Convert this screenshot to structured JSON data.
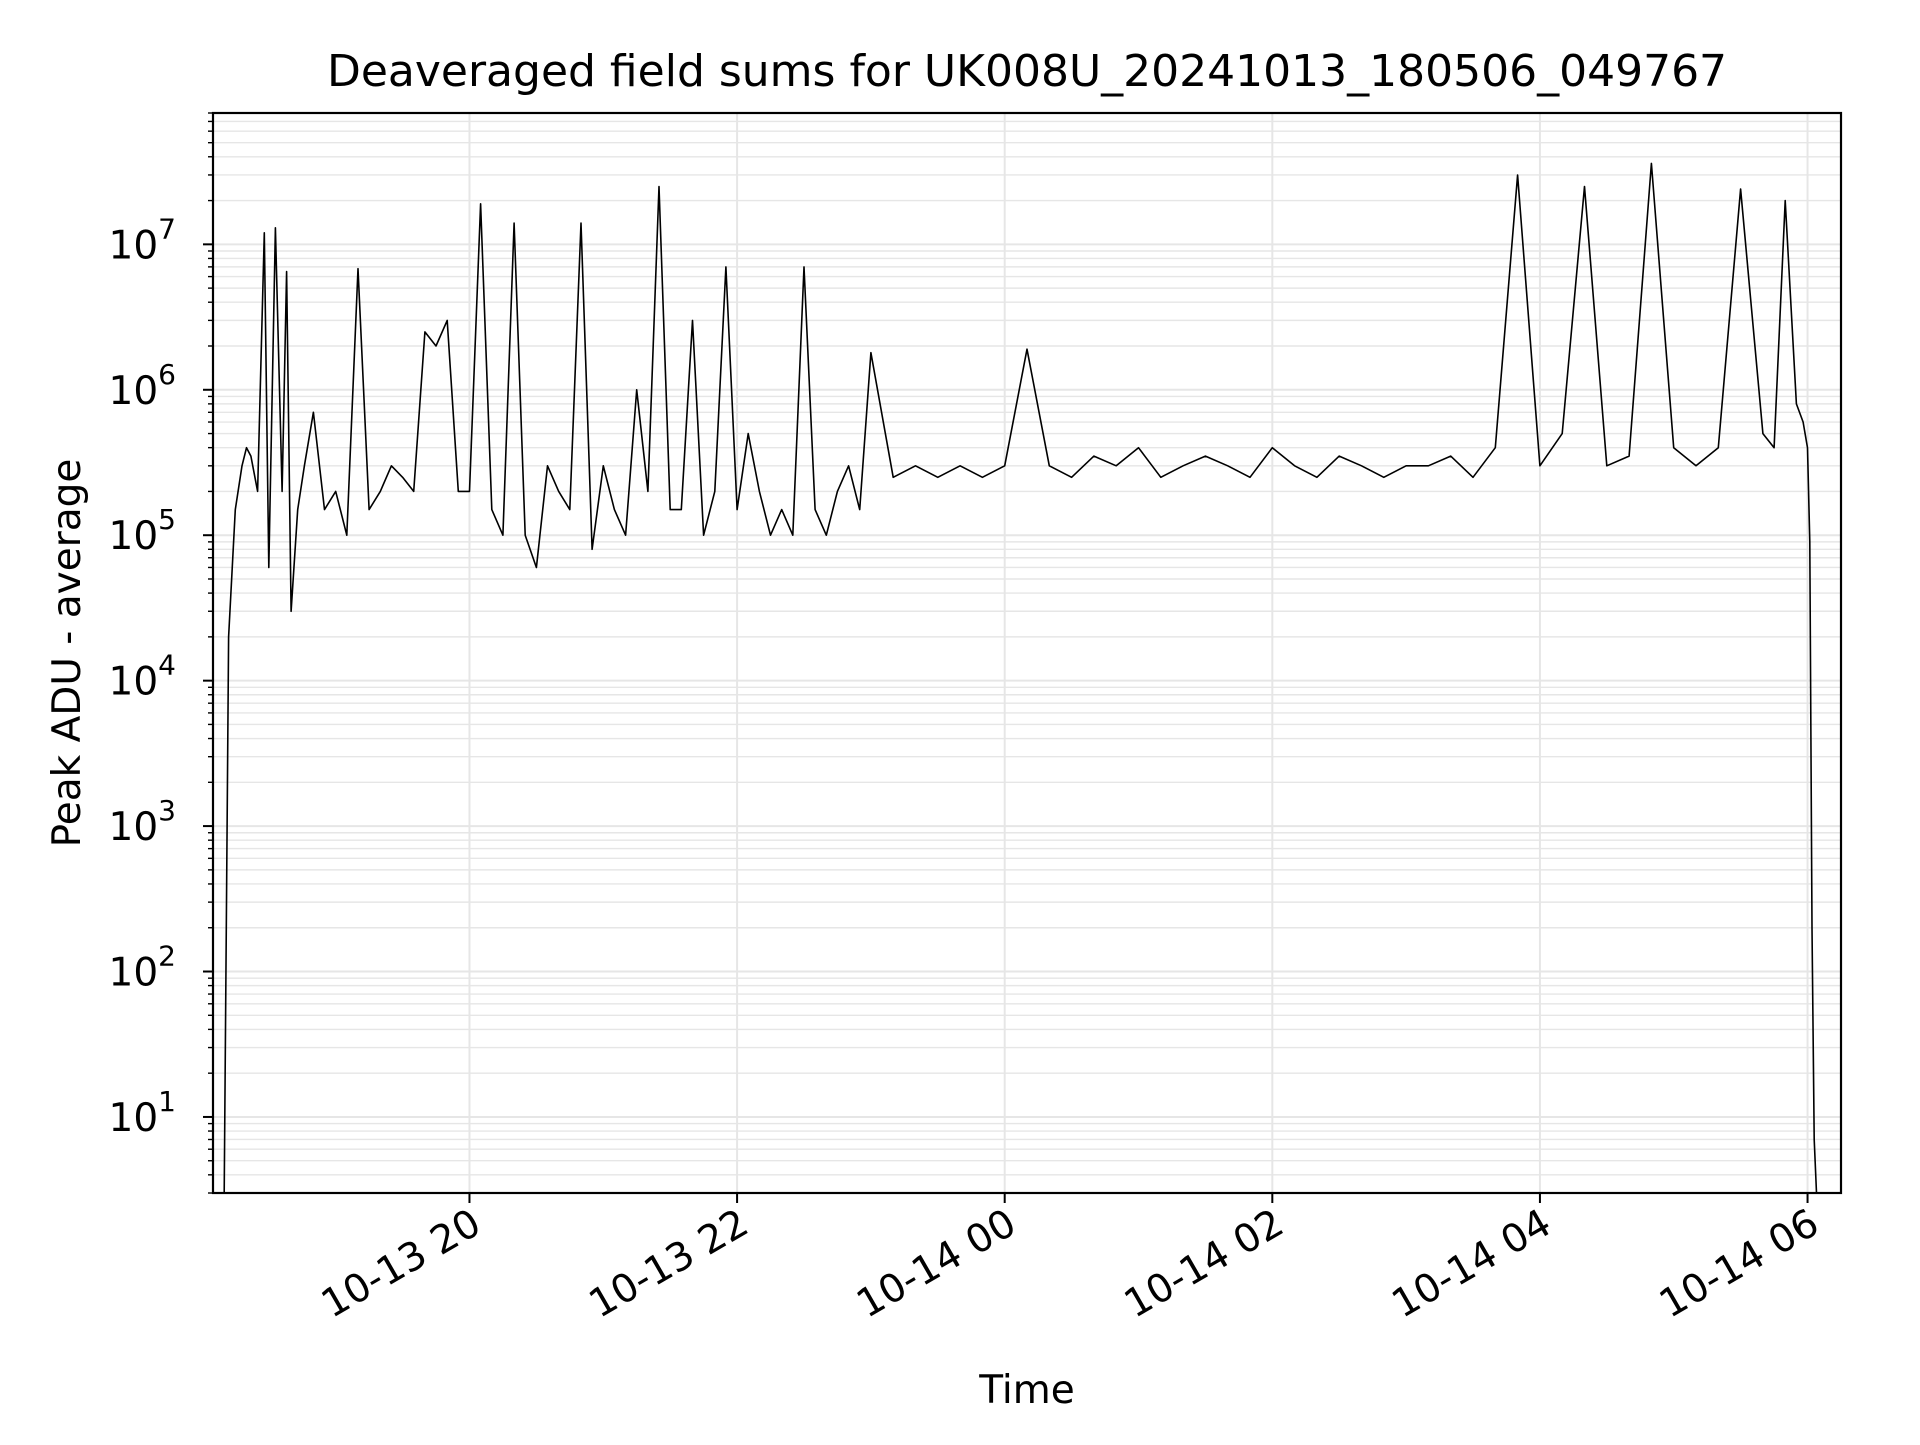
{
  "chart_data": {
    "type": "line",
    "title": "Deaveraged field sums for UK008U_20241013_180506_049767",
    "xlabel": "Time",
    "ylabel": "Peak ADU - average",
    "yscale": "log",
    "ylim": [
      3,
      80000000
    ],
    "xlim": [
      "2024-10-13 18:05",
      "2024-10-14 06:15"
    ],
    "grid": true,
    "legend": "none",
    "line_color": "#000000",
    "grid_color": "#e6e6e6",
    "x_ticks": [
      {
        "value": "2024-10-13 20:00",
        "label": "10-13 20"
      },
      {
        "value": "2024-10-13 22:00",
        "label": "10-13 22"
      },
      {
        "value": "2024-10-14 00:00",
        "label": "10-14 00"
      },
      {
        "value": "2024-10-14 02:00",
        "label": "10-14 02"
      },
      {
        "value": "2024-10-14 04:00",
        "label": "10-14 04"
      },
      {
        "value": "2024-10-14 06:00",
        "label": "10-14 06"
      }
    ],
    "y_ticks": [
      {
        "value": 10,
        "base": "10",
        "exp": "1"
      },
      {
        "value": 100,
        "base": "10",
        "exp": "2"
      },
      {
        "value": 1000,
        "base": "10",
        "exp": "3"
      },
      {
        "value": 10000,
        "base": "10",
        "exp": "4"
      },
      {
        "value": 100000,
        "base": "10",
        "exp": "5"
      },
      {
        "value": 1000000,
        "base": "10",
        "exp": "6"
      },
      {
        "value": 10000000,
        "base": "10",
        "exp": "7"
      }
    ],
    "series": [
      {
        "x": [
          "2024-10-13 18:10",
          "2024-10-13 18:12",
          "2024-10-13 18:15",
          "2024-10-13 18:18",
          "2024-10-13 18:20",
          "2024-10-13 18:22",
          "2024-10-13 18:25",
          "2024-10-13 18:28",
          "2024-10-13 18:30",
          "2024-10-13 18:33",
          "2024-10-13 18:36",
          "2024-10-13 18:38",
          "2024-10-13 18:40",
          "2024-10-13 18:43",
          "2024-10-13 18:46",
          "2024-10-13 18:50",
          "2024-10-13 18:55",
          "2024-10-13 19:00",
          "2024-10-13 19:05",
          "2024-10-13 19:10",
          "2024-10-13 19:15",
          "2024-10-13 19:20",
          "2024-10-13 19:25",
          "2024-10-13 19:30",
          "2024-10-13 19:35",
          "2024-10-13 19:40",
          "2024-10-13 19:45",
          "2024-10-13 19:50",
          "2024-10-13 19:55",
          "2024-10-13 20:00",
          "2024-10-13 20:05",
          "2024-10-13 20:10",
          "2024-10-13 20:15",
          "2024-10-13 20:20",
          "2024-10-13 20:25",
          "2024-10-13 20:30",
          "2024-10-13 20:35",
          "2024-10-13 20:40",
          "2024-10-13 20:45",
          "2024-10-13 20:50",
          "2024-10-13 20:55",
          "2024-10-13 21:00",
          "2024-10-13 21:05",
          "2024-10-13 21:10",
          "2024-10-13 21:15",
          "2024-10-13 21:20",
          "2024-10-13 21:25",
          "2024-10-13 21:30",
          "2024-10-13 21:35",
          "2024-10-13 21:40",
          "2024-10-13 21:45",
          "2024-10-13 21:50",
          "2024-10-13 21:55",
          "2024-10-13 22:00",
          "2024-10-13 22:05",
          "2024-10-13 22:10",
          "2024-10-13 22:15",
          "2024-10-13 22:20",
          "2024-10-13 22:25",
          "2024-10-13 22:30",
          "2024-10-13 22:35",
          "2024-10-13 22:40",
          "2024-10-13 22:45",
          "2024-10-13 22:50",
          "2024-10-13 22:55",
          "2024-10-13 23:00",
          "2024-10-13 23:10",
          "2024-10-13 23:20",
          "2024-10-13 23:30",
          "2024-10-13 23:40",
          "2024-10-13 23:50",
          "2024-10-14 00:00",
          "2024-10-14 00:10",
          "2024-10-14 00:20",
          "2024-10-14 00:30",
          "2024-10-14 00:40",
          "2024-10-14 00:50",
          "2024-10-14 01:00",
          "2024-10-14 01:10",
          "2024-10-14 01:20",
          "2024-10-14 01:30",
          "2024-10-14 01:40",
          "2024-10-14 01:50",
          "2024-10-14 02:00",
          "2024-10-14 02:10",
          "2024-10-14 02:20",
          "2024-10-14 02:30",
          "2024-10-14 02:40",
          "2024-10-14 02:50",
          "2024-10-14 03:00",
          "2024-10-14 03:10",
          "2024-10-14 03:20",
          "2024-10-14 03:30",
          "2024-10-14 03:40",
          "2024-10-14 03:50",
          "2024-10-14 04:00",
          "2024-10-14 04:10",
          "2024-10-14 04:20",
          "2024-10-14 04:30",
          "2024-10-14 04:40",
          "2024-10-14 04:50",
          "2024-10-14 05:00",
          "2024-10-14 05:10",
          "2024-10-14 05:20",
          "2024-10-14 05:30",
          "2024-10-14 05:40",
          "2024-10-14 05:45",
          "2024-10-14 05:50",
          "2024-10-14 05:55",
          "2024-10-14 05:58",
          "2024-10-14 06:00",
          "2024-10-14 06:01",
          "2024-10-14 06:02",
          "2024-10-14 06:03",
          "2024-10-14 06:04"
        ],
        "y": [
          3,
          20000,
          150000,
          300000,
          400000,
          350000,
          200000,
          12000000,
          60000,
          13000000,
          200000,
          6500000,
          30000,
          150000,
          300000,
          700000,
          150000,
          200000,
          100000,
          6800000,
          150000,
          200000,
          300000,
          250000,
          200000,
          2500000,
          2000000,
          3000000,
          200000,
          200000,
          19000000,
          150000,
          100000,
          14000000,
          100000,
          60000,
          300000,
          200000,
          150000,
          14000000,
          80000,
          300000,
          150000,
          100000,
          1000000,
          200000,
          25000000,
          150000,
          150000,
          3000000,
          100000,
          200000,
          7000000,
          150000,
          500000,
          200000,
          100000,
          150000,
          100000,
          7000000,
          150000,
          100000,
          200000,
          300000,
          150000,
          1800000,
          250000,
          300000,
          250000,
          300000,
          250000,
          300000,
          1900000,
          300000,
          250000,
          350000,
          300000,
          400000,
          250000,
          300000,
          350000,
          300000,
          250000,
          400000,
          300000,
          250000,
          350000,
          300000,
          250000,
          300000,
          300000,
          350000,
          250000,
          400000,
          30000000,
          300000,
          500000,
          25000000,
          300000,
          350000,
          36000000,
          400000,
          300000,
          400000,
          24000000,
          500000,
          400000,
          20000000,
          800000,
          600000,
          400000,
          90000,
          200,
          7,
          3
        ]
      }
    ]
  }
}
